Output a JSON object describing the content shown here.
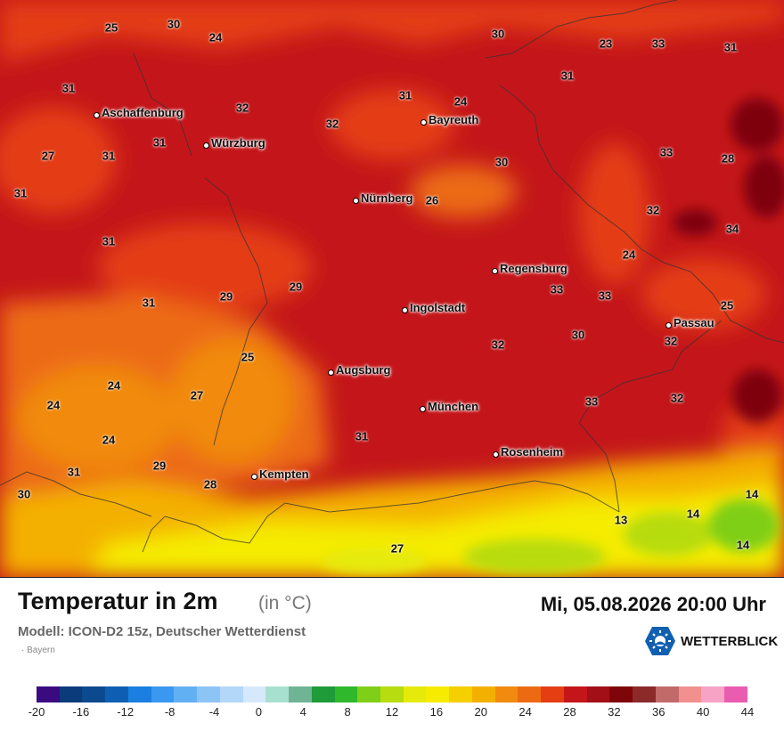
{
  "title": "Temperatur in 2m",
  "unit": "(in °C)",
  "model_line": "Modell: ICON-D2 15z, Deutscher Wetterdienst",
  "region": "· Bayern",
  "datetime": "Mi, 05.08.2026 20:00 Uhr",
  "brand": "WETTERBLICK",
  "cities": [
    {
      "name": "Aschaffenburg"
    },
    {
      "name": "Würzburg"
    },
    {
      "name": "Bayreuth"
    },
    {
      "name": "Nürnberg"
    },
    {
      "name": "Regensburg"
    },
    {
      "name": "Ingolstadt"
    },
    {
      "name": "Passau"
    },
    {
      "name": "Augsburg"
    },
    {
      "name": "München"
    },
    {
      "name": "Rosenheim"
    },
    {
      "name": "Kempten"
    }
  ],
  "temperatures": [
    "25",
    "30",
    "24",
    "30",
    "23",
    "33",
    "31",
    "31",
    "31",
    "24",
    "32",
    "31",
    "32",
    "31",
    "27",
    "31",
    "33",
    "28",
    "30",
    "31",
    "26",
    "32",
    "31",
    "34",
    "24",
    "33",
    "29",
    "29",
    "33",
    "31",
    "25",
    "30",
    "32",
    "32",
    "25",
    "24",
    "27",
    "32",
    "24",
    "33",
    "24",
    "31",
    "31",
    "29",
    "30",
    "28",
    "13",
    "14",
    "14",
    "14",
    "27"
  ],
  "colorscale": {
    "labels": [
      "-20",
      "-16",
      "-12",
      "-8",
      "-4",
      "0",
      "4",
      "8",
      "12",
      "16",
      "20",
      "24",
      "28",
      "32",
      "36",
      "40",
      "44"
    ],
    "colors": [
      "#3b0a80",
      "#0b3b7a",
      "#0c4a8f",
      "#0e5fb3",
      "#1a7fe0",
      "#3a98f0",
      "#62b0f4",
      "#8cc4f6",
      "#b3d7f8",
      "#d6e8fb",
      "#a8e0cf",
      "#6fb595",
      "#1f9b3a",
      "#2fb82a",
      "#7fcf18",
      "#b7dc10",
      "#e6ea0a",
      "#f5ec00",
      "#f6cf00",
      "#f4b000",
      "#f18a0f",
      "#ec6b12",
      "#e43e12",
      "#c4161a",
      "#a30f17",
      "#7e0509",
      "#8c2a2a",
      "#c26a6a",
      "#f29090",
      "#f6a3c6",
      "#ea5cb0"
    ]
  }
}
